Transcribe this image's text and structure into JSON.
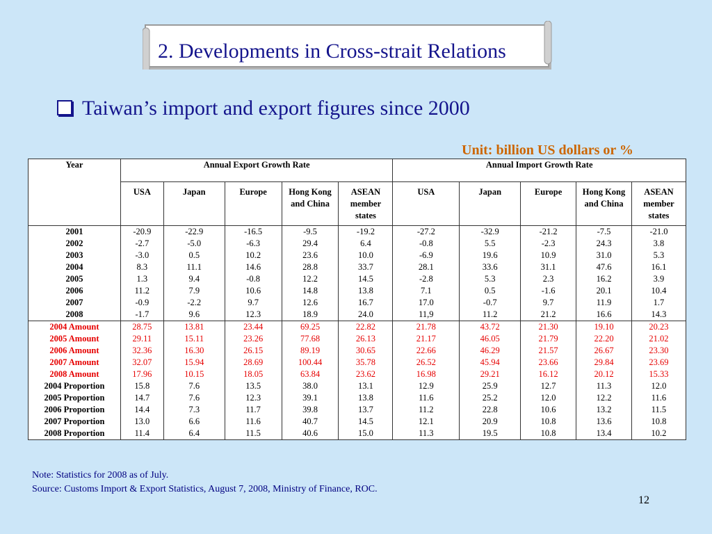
{
  "title": "2. Developments in Cross-strait Relations",
  "subtitle": "Taiwan’s import and export figures since 2000",
  "unit": "Unit: billion US dollars or %",
  "table": {
    "year_header": "Year",
    "export_header": "Annual Export Growth Rate",
    "import_header": "Annual Import Growth Rate",
    "columns": [
      "USA",
      "Japan",
      "Europe",
      "Hong Kong and China",
      "ASEAN member states",
      "USA",
      "Japan",
      "Europe",
      "Hong Kong and China",
      "ASEAN member states"
    ],
    "growth_years": [
      "2001",
      "2002",
      "2003",
      "2004",
      "2005",
      "2006",
      "2007",
      "2008"
    ],
    "growth_columns": [
      [
        "-20.9",
        "-2.7",
        "-3.0",
        "8.3",
        "1.3",
        "11.2",
        "-0.9",
        "-1.7"
      ],
      [
        "-22.9",
        "-5.0",
        "0.5",
        "11.1",
        "9.4",
        "7.9",
        "-2.2",
        "9.6"
      ],
      [
        "-16.5",
        "-6.3",
        "10.2",
        "14.6",
        "-0.8",
        "10.6",
        "9.7",
        "12.3"
      ],
      [
        "-9.5",
        "29.4",
        "23.6",
        "28.8",
        "12.2",
        "14.8",
        "12.6",
        "18.9"
      ],
      [
        "-19.2",
        "6.4",
        "10.0",
        "33.7",
        "14.5",
        "13.8",
        "16.7",
        "24.0"
      ],
      [
        "-27.2",
        "-0.8",
        "-6.9",
        "28.1",
        "-2.8",
        "7.1",
        "17.0",
        "11,9"
      ],
      [
        "-32.9",
        "5.5",
        "19.6",
        "33.6",
        "5.3",
        "0.5",
        "-0.7",
        "11.2"
      ],
      [
        "-21.2",
        "-2.3",
        "10.9",
        "31.1",
        "2.3",
        "-1.6",
        "9.7",
        "21.2"
      ],
      [
        "-7.5",
        "24.3",
        "31.0",
        "47.6",
        "16.2",
        "20.1",
        "11.9",
        "16.6"
      ],
      [
        "-21.0",
        "3.8",
        "5.3",
        "16.1",
        "3.9",
        "10.4",
        "1.7",
        "14.3"
      ]
    ],
    "amount_labels": [
      "2004 Amount",
      "2005 Amount",
      "2006 Amount",
      "2007 Amount",
      "2008 Amount"
    ],
    "proportion_labels": [
      "2004 Proportion",
      "2005 Proportion",
      "2006 Proportion",
      "2007 Proportion",
      "2008 Proportion"
    ],
    "amount_columns": [
      [
        "28.75",
        "29.11",
        "32.36",
        "32.07",
        "17.96"
      ],
      [
        "13.81",
        "15.11",
        "16.30",
        "15.94",
        "10.15"
      ],
      [
        "23.44",
        "23.26",
        "26.15",
        "28.69",
        "18.05"
      ],
      [
        "69.25",
        "77.68",
        "89.19",
        "100.44",
        "63.84"
      ],
      [
        "22.82",
        "26.13",
        "30.65",
        "35.78",
        "23.62"
      ],
      [
        "21.78",
        "21.17",
        "22.66",
        "26.52",
        "16.98"
      ],
      [
        "43.72",
        "46.05",
        "46.29",
        "45.94",
        "29.21"
      ],
      [
        "21.30",
        "21.79",
        "21.57",
        "23.66",
        "16.12"
      ],
      [
        "19.10",
        "22.20",
        "26.67",
        "29.84",
        "20.12"
      ],
      [
        "20.23",
        "21.02",
        "23.30",
        "23.69",
        "15.33"
      ]
    ],
    "proportion_columns": [
      [
        "15.8",
        "14.7",
        "14.4",
        "13.0",
        "11.4"
      ],
      [
        "7.6",
        "7.6",
        "7.3",
        "6.6",
        "6.4"
      ],
      [
        "13.5",
        "12.3",
        "11.7",
        "11.6",
        "11.5"
      ],
      [
        "38.0",
        "39.1",
        "39.8",
        "40.7",
        "40.6"
      ],
      [
        "13.1",
        "13.8",
        "13.7",
        "14.5",
        "15.0"
      ],
      [
        "12.9",
        "11.6",
        "11.2",
        "12.1",
        "11.3"
      ],
      [
        "25.9",
        "25.2",
        "22.8",
        "20.9",
        "19.5"
      ],
      [
        "12.7",
        "12.0",
        "10.6",
        "10.8",
        "10.8"
      ],
      [
        "11.3",
        "12.2",
        "13.2",
        "13.6",
        "13.4"
      ],
      [
        "12.0",
        "11.6",
        "11.5",
        "10.8",
        "10.2"
      ]
    ]
  },
  "note": "Note: Statistics for 2008 as of July.",
  "source": "Source: Customs Import & Export Statistics, August 7, 2008, Ministry of Finance, ROC.",
  "page_number": "12",
  "colors": {
    "background": "#cce6f8",
    "title_text": "#14148c",
    "unit_text": "#cc6600",
    "amount_text": "#e60000"
  }
}
